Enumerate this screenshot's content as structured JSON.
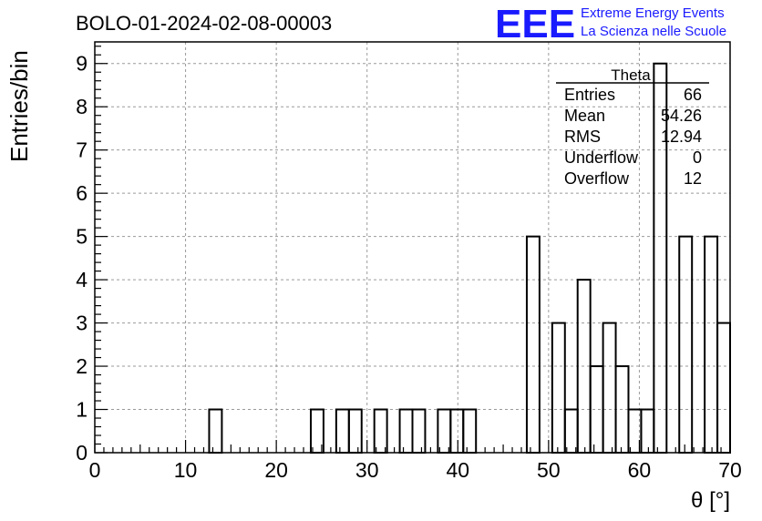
{
  "title": "BOLO-01-2024-02-08-00003",
  "logo": {
    "text": "EEE",
    "line1": "Extreme Energy Events",
    "line2": "La Scienza nelle Scuole",
    "color": "#1a1aff"
  },
  "stats": {
    "name": "Theta",
    "rows": [
      {
        "label": "Entries",
        "value": "66"
      },
      {
        "label": "Mean",
        "value": "54.26"
      },
      {
        "label": "RMS",
        "value": "12.94"
      },
      {
        "label": "Underflow",
        "value": "0"
      },
      {
        "label": "Overflow",
        "value": "12"
      }
    ]
  },
  "chart_data": {
    "type": "histogram",
    "xlabel": "θ [°]",
    "ylabel": "Entries/bin",
    "xlim": [
      0,
      70
    ],
    "ylim": [
      0,
      9.5
    ],
    "x_ticks": [
      0,
      10,
      20,
      30,
      40,
      50,
      60,
      70
    ],
    "y_ticks": [
      0,
      1,
      2,
      3,
      4,
      5,
      6,
      7,
      8,
      9
    ],
    "grid": true,
    "bin_edges": [
      0,
      1.4,
      2.8,
      4.2,
      5.6,
      7,
      8.4,
      9.8,
      11.2,
      12.6,
      14,
      15.4,
      16.8,
      18.2,
      19.6,
      21,
      22.4,
      23.8,
      25.2,
      26.6,
      28,
      29.4,
      30.8,
      32.2,
      33.6,
      35,
      36.4,
      37.8,
      39.2,
      40.6,
      42,
      43.4,
      44.8,
      46.2,
      47.6,
      49,
      50.4,
      51.8,
      53.2,
      54.6,
      56,
      57.4,
      58.8,
      60.2,
      61.6,
      63,
      64.4,
      65.8,
      67.2,
      68.6,
      70
    ],
    "counts": [
      0,
      0,
      0,
      0,
      0,
      0,
      0,
      0,
      0,
      1,
      0,
      0,
      0,
      0,
      0,
      0,
      0,
      1,
      0,
      1,
      1,
      0,
      1,
      0,
      1,
      1,
      0,
      1,
      1,
      1,
      0,
      0,
      0,
      0,
      5,
      0,
      3,
      1,
      4,
      2,
      3,
      2,
      1,
      1,
      9,
      0,
      5,
      0,
      5,
      3
    ]
  }
}
